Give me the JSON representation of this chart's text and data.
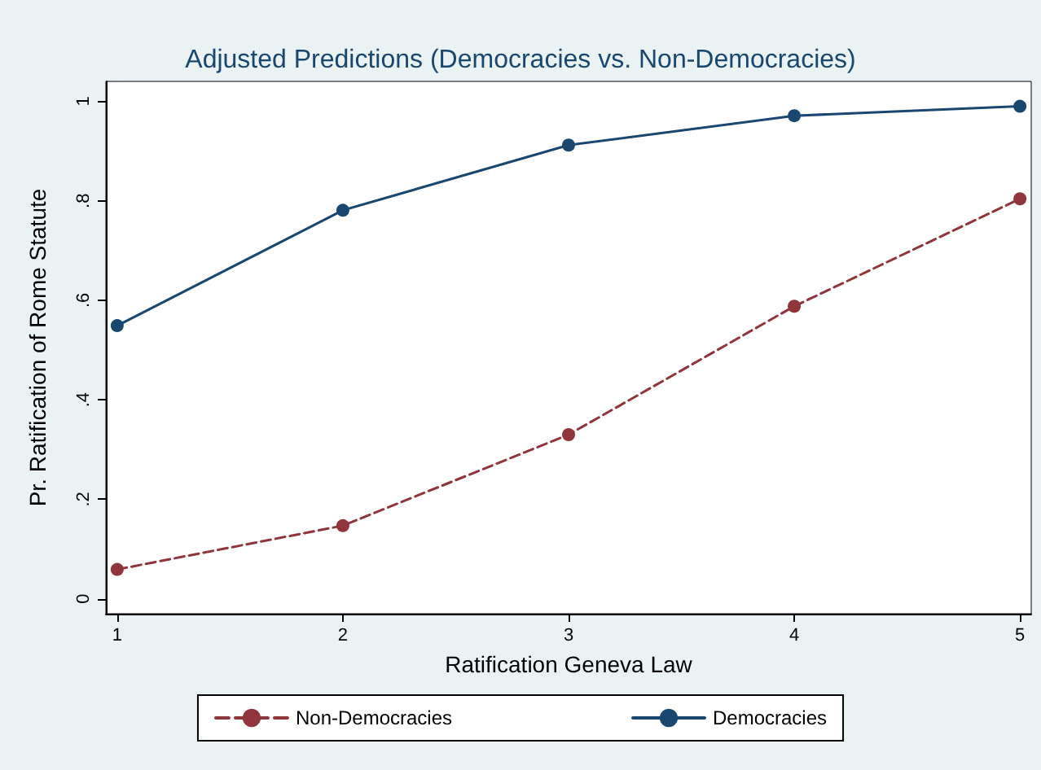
{
  "chart_data": {
    "type": "line",
    "title": "Adjusted Predictions (Democracies vs. Non-Democracies)",
    "xlabel": "Ratification Geneva Law",
    "ylabel": "Pr. Ratification of Rome Statute",
    "x": [
      1,
      2,
      3,
      4,
      5
    ],
    "series": [
      {
        "name": "Non-Democracies",
        "color": "#90353b",
        "line_style": "dashed",
        "values": [
          0.059,
          0.147,
          0.33,
          0.588,
          0.804
        ]
      },
      {
        "name": "Democracies",
        "color": "#1a476f",
        "line_style": "solid",
        "values": [
          0.549,
          0.781,
          0.912,
          0.971,
          0.99
        ]
      }
    ],
    "xlim": [
      0.95,
      5.05
    ],
    "xticks": [
      1,
      2,
      3,
      4,
      5
    ],
    "ylim": [
      -0.03,
      1.04
    ],
    "yticks": [
      0,
      {
        "value": 0.2,
        "label": ".2"
      },
      {
        "value": 0.4,
        "label": ".4"
      },
      {
        "value": 0.6,
        "label": ".6"
      },
      {
        "value": 0.8,
        "label": ".8"
      },
      1
    ],
    "grid": false,
    "legend": "bottom",
    "marker": "circle"
  }
}
